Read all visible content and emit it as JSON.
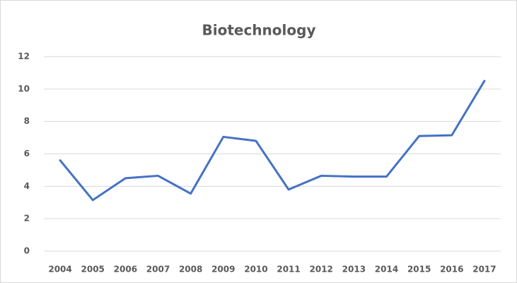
{
  "chart_data": {
    "type": "line",
    "title": "Biotechnology",
    "categories": [
      "2004",
      "2005",
      "2006",
      "2007",
      "2008",
      "2009",
      "2010",
      "2011",
      "2012",
      "2013",
      "2014",
      "2015",
      "2016",
      "2017"
    ],
    "series": [
      {
        "color": "#4472c4",
        "values": [
          5.6,
          3.15,
          4.5,
          4.65,
          3.55,
          7.05,
          6.8,
          3.8,
          4.65,
          4.6,
          4.6,
          7.1,
          7.15,
          10.5
        ]
      }
    ],
    "ylim": [
      0,
      12
    ],
    "yticks": [
      0,
      2,
      4,
      6,
      8,
      10,
      12
    ],
    "grid": true
  }
}
